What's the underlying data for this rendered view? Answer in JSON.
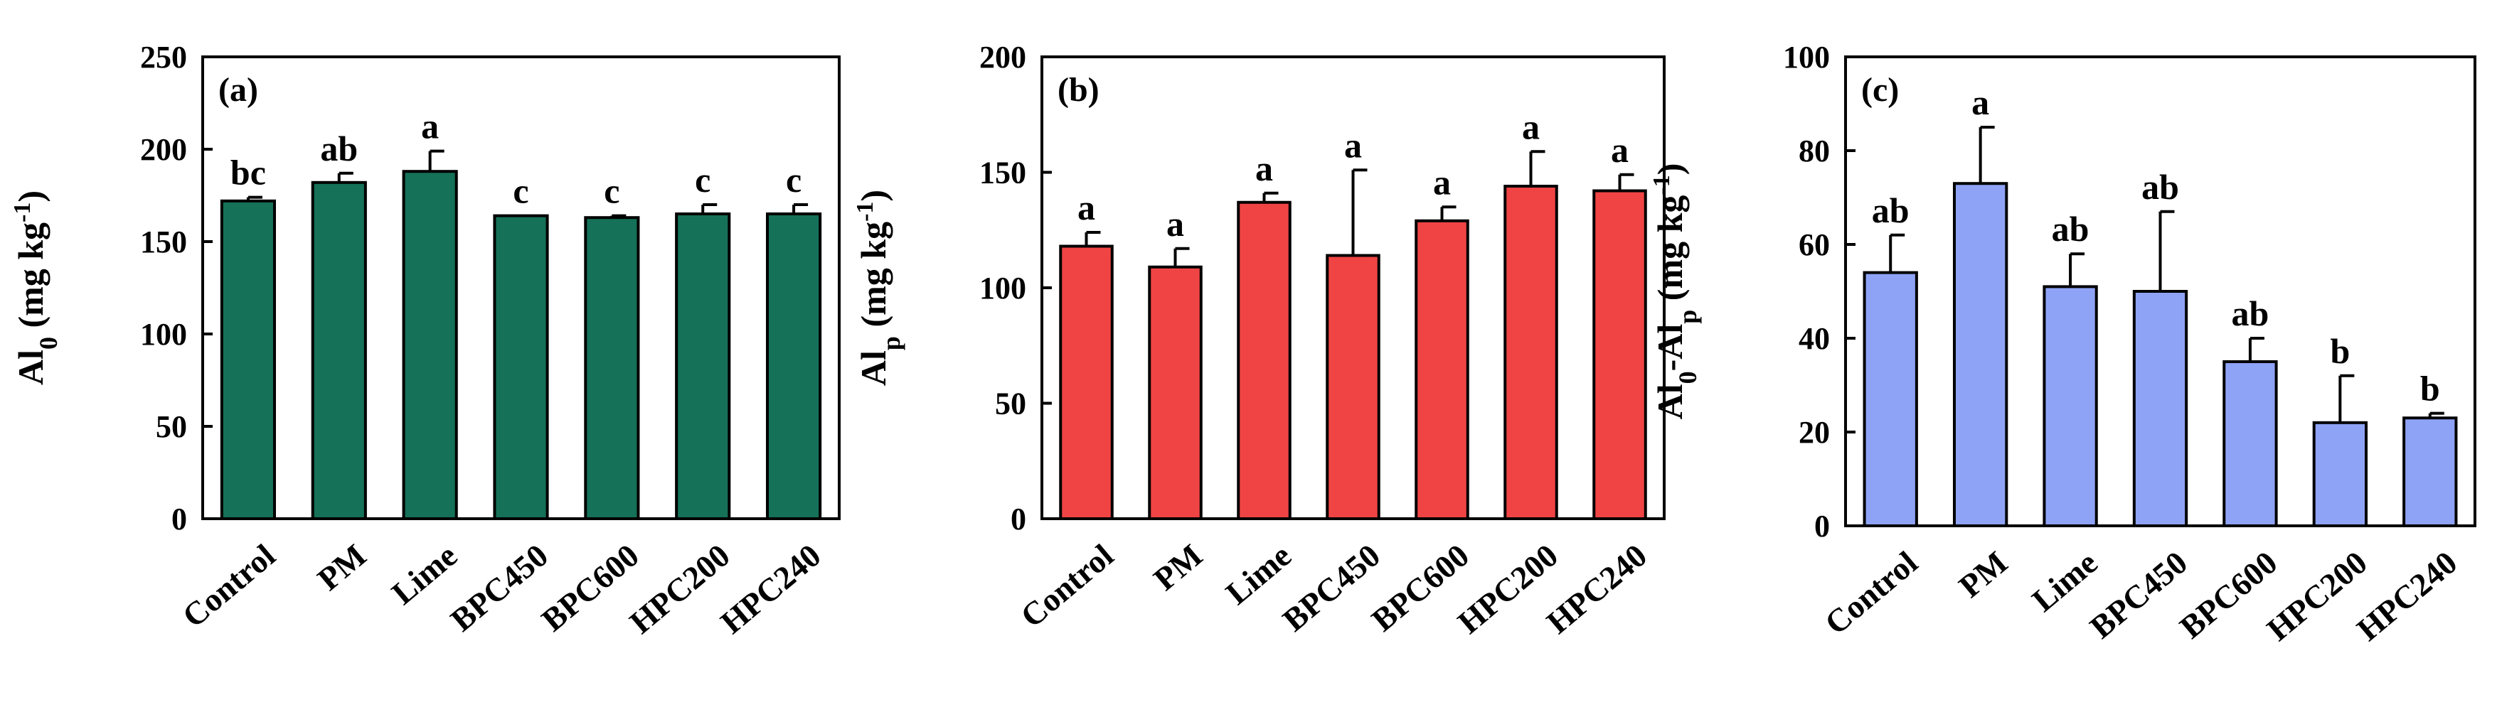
{
  "chart_data": [
    {
      "type": "bar",
      "panel_label": "(a)",
      "ylabel": "Al0 (mg kg-1)",
      "ylabel_parts": {
        "main": "Al",
        "sub": "0",
        "unit_pre": " (mg kg",
        "sup": "-1",
        "unit_post": ")"
      },
      "ylim": [
        0,
        250
      ],
      "yticks": [
        0,
        50,
        100,
        150,
        200,
        250
      ],
      "categories": [
        "Control",
        "PM",
        "Lime",
        "BPC450",
        "BPC600",
        "HPC200",
        "HPC240"
      ],
      "values": [
        172,
        182,
        188,
        164,
        163,
        165,
        165
      ],
      "errors": [
        2,
        5,
        11,
        0,
        1,
        5,
        5
      ],
      "significance": [
        "bc",
        "ab",
        "a",
        "c",
        "c",
        "c",
        "c"
      ],
      "color": "#157158",
      "grid": false
    },
    {
      "type": "bar",
      "panel_label": "(b)",
      "ylabel": "Alp (mg kg-1)",
      "ylabel_parts": {
        "main": "Al",
        "sub": "p",
        "unit_pre": " (mg kg",
        "sup": "-1",
        "unit_post": ")"
      },
      "ylim": [
        0,
        200
      ],
      "yticks": [
        0,
        50,
        100,
        150,
        200
      ],
      "categories": [
        "Control",
        "PM",
        "Lime",
        "BPC450",
        "BPC600",
        "HPC200",
        "HPC240"
      ],
      "values": [
        118,
        109,
        137,
        114,
        129,
        144,
        142
      ],
      "errors": [
        6,
        8,
        4,
        37,
        6,
        15,
        7
      ],
      "significance": [
        "a",
        "a",
        "a",
        "a",
        "a",
        "a",
        "a"
      ],
      "color": "#f04444",
      "grid": false
    },
    {
      "type": "bar",
      "panel_label": "(c)",
      "ylabel": "Al0-Alp (mg kg-1)",
      "ylabel_parts": {
        "main": "Al",
        "sub": "0",
        "mid": "-Al",
        "sub2": "p",
        "unit_pre": " (mg kg",
        "sup": "-1",
        "unit_post": ")"
      },
      "ylim": [
        0,
        100
      ],
      "yticks": [
        0,
        20,
        40,
        60,
        80,
        100
      ],
      "categories": [
        "Control",
        "PM",
        "Lime",
        "BPC450",
        "BPC600",
        "HPC200",
        "HPC240"
      ],
      "values": [
        54,
        73,
        51,
        50,
        35,
        22,
        23
      ],
      "errors": [
        8,
        12,
        7,
        17,
        5,
        10,
        1
      ],
      "significance": [
        "ab",
        "a",
        "ab",
        "ab",
        "ab",
        "b",
        "b"
      ],
      "color": "#8fa3f6",
      "grid": false
    }
  ]
}
